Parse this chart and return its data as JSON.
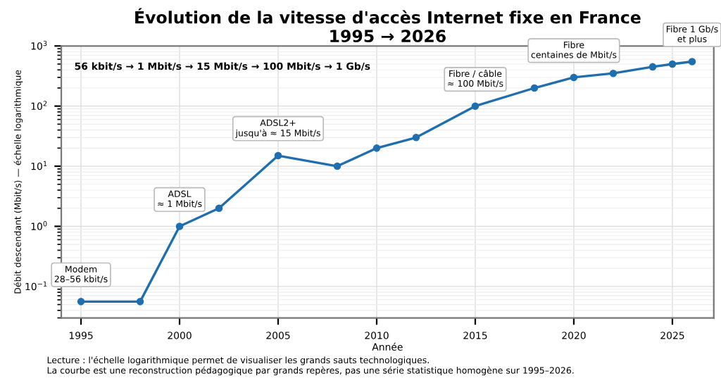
{
  "chart_data": {
    "type": "line",
    "title": "Évolution de la vitesse d'accès Internet fixe en France\n1995 → 2026",
    "xlabel": "Année",
    "ylabel": "Débit descendant (Mbit/s) — échelle logarithmique",
    "x": [
      1995,
      1998,
      2000,
      2002,
      2005,
      2008,
      2010,
      2012,
      2015,
      2018,
      2020,
      2022,
      2024,
      2025,
      2026
    ],
    "series": [
      {
        "color": "#1f6fb0",
        "values": [
          0.056,
          0.056,
          1,
          2,
          15,
          10,
          20,
          30,
          100,
          200,
          300,
          350,
          450,
          500,
          550
        ]
      }
    ],
    "log": "y",
    "xlim": [
      1994,
      2027.1
    ],
    "ylim": [
      0.03,
      1000
    ],
    "xticks": [
      1995,
      2000,
      2005,
      2010,
      2015,
      2020,
      2025
    ],
    "yticks": [
      {
        "value": 0.1,
        "label": "10$^{−1}$"
      },
      {
        "value": 1,
        "label": "10$^{0}$"
      },
      {
        "value": 10,
        "label": "10$^{1}$"
      },
      {
        "value": 100,
        "label": "10$^{2}$"
      },
      {
        "value": 1000,
        "label": "10$^{3}$"
      }
    ],
    "grid": true,
    "marker": "circle",
    "line_style": "solid",
    "annotations": [
      "56 kbit/s → 1 Mbit/s → 15 Mbit/s → 100 Mbit/s → 1 Gb/s",
      {
        "text": "Modem\n28–56 kbit/s",
        "x": 1995,
        "y": 0.056
      },
      {
        "text": "ADSL\n≈ 1 Mbit/s",
        "x": 2000,
        "y": 1
      },
      {
        "text": "ADSL2+\njusqu'à ≈ 15 Mbit/s",
        "x": 2005,
        "y": 15
      },
      {
        "text": "Fibre / câble\n≈ 100 Mbit/s",
        "x": 2015,
        "y": 100
      },
      {
        "text": "Fibre\ncentaines de Mbit/s",
        "x": 2020,
        "y": 300
      },
      {
        "text": "Fibre 1 Gb/s\net plus",
        "x": 2026,
        "y": 550
      },
      "Lecture : l'échelle logarithmique permet de visualiser les grands sauts technologiques.\nLa courbe est une reconstruction pédagogique par grands repères, pas une série statistique homogène sur 1995–2026."
    ]
  }
}
